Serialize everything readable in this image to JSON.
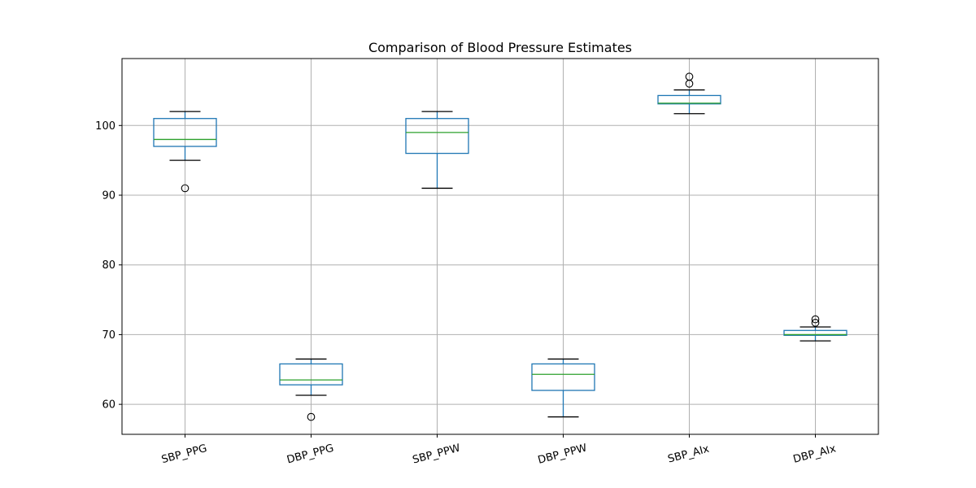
{
  "chart_data": {
    "type": "box",
    "title": "Comparison of Blood Pressure Estimates",
    "xlabel": "",
    "ylabel": "",
    "ylim": [
      55.7,
      109.6
    ],
    "yticks": [
      60,
      70,
      80,
      90,
      100
    ],
    "grid": true,
    "colors": {
      "box": "#1f77b4",
      "median": "#2ca02c",
      "grid": "#b0b0b0"
    },
    "categories": [
      "SBP_PPG",
      "DBP_PPG",
      "SBP_PPW",
      "DBP_PPW",
      "SBP_AIx",
      "DBP_AIx"
    ],
    "boxes": [
      {
        "label": "SBP_PPG",
        "whisker_low": 95.0,
        "q1": 97.0,
        "median": 98.0,
        "q3": 101.0,
        "whisker_high": 102.0,
        "outliers": [
          91.0
        ]
      },
      {
        "label": "DBP_PPG",
        "whisker_low": 61.3,
        "q1": 62.8,
        "median": 63.5,
        "q3": 65.8,
        "whisker_high": 66.5,
        "outliers": [
          58.2
        ]
      },
      {
        "label": "SBP_PPW",
        "whisker_low": 91.0,
        "q1": 96.0,
        "median": 99.0,
        "q3": 101.0,
        "whisker_high": 102.0,
        "outliers": []
      },
      {
        "label": "DBP_PPW",
        "whisker_low": 58.2,
        "q1": 62.0,
        "median": 64.3,
        "q3": 65.8,
        "whisker_high": 66.5,
        "outliers": []
      },
      {
        "label": "SBP_AIx",
        "whisker_low": 101.7,
        "q1": 103.1,
        "median": 103.2,
        "q3": 104.3,
        "whisker_high": 105.1,
        "outliers": [
          106.0,
          107.0
        ]
      },
      {
        "label": "DBP_AIx",
        "whisker_low": 69.1,
        "q1": 69.9,
        "median": 70.0,
        "q3": 70.6,
        "whisker_high": 71.1,
        "outliers": [
          71.7,
          72.2
        ]
      }
    ]
  }
}
